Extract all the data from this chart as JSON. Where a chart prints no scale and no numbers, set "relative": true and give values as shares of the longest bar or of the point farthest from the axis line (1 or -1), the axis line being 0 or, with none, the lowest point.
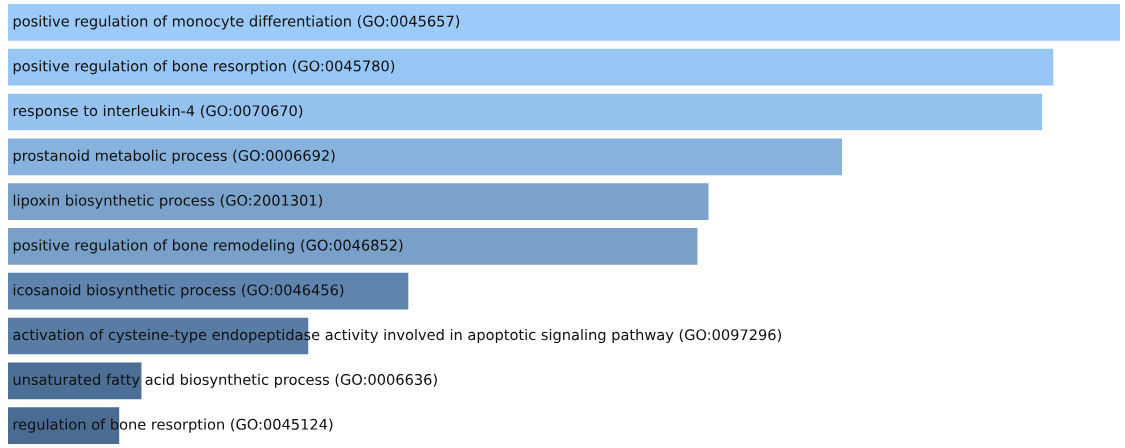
{
  "chart_data": {
    "type": "bar",
    "orientation": "horizontal",
    "relative": true,
    "categories": [
      "positive regulation of monocyte differentiation (GO:0045657)",
      "positive regulation of bone resorption (GO:0045780)",
      "response to interleukin-4 (GO:0070670)",
      "prostanoid metabolic process (GO:0006692)",
      "lipoxin biosynthetic process (GO:2001301)",
      "positive regulation of bone remodeling (GO:0046852)",
      "icosanoid biosynthetic process (GO:0046456)",
      "activation of cysteine-type endopeptidase activity involved in apoptotic signaling pathway (GO:0097296)",
      "unsaturated fatty acid biosynthetic process (GO:0006636)",
      "regulation of bone resorption (GO:0045124)"
    ],
    "values": [
      1.0,
      0.94,
      0.93,
      0.75,
      0.63,
      0.62,
      0.36,
      0.27,
      0.12,
      0.1
    ],
    "colors": [
      "#9ccbfa",
      "#98c6f4",
      "#95c2ee",
      "#87b2dd",
      "#7aa2cb",
      "#79a0c9",
      "#5f84ad",
      "#587ca4",
      "#4c6f95",
      "#4a6c92"
    ]
  }
}
